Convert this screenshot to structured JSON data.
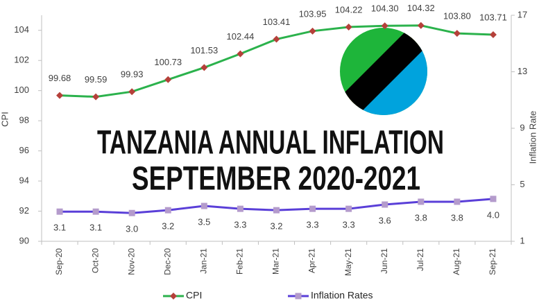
{
  "chart_data": {
    "type": "line",
    "title": "TANZANIA ANNUAL INFLATION",
    "subtitle": "SEPTEMBER 2020-2021",
    "y_label": "CPI",
    "y2_label": "Inflation Rate",
    "categories": [
      "Sep-20",
      "Oct-20",
      "Nov-20",
      "Dec-20",
      "Jan-21",
      "Feb-21",
      "Mar-21",
      "Apr-21",
      "May-21",
      "Jun-21",
      "Jul-21",
      "Aug-21",
      "Sep-21"
    ],
    "series": [
      {
        "name": "CPI",
        "color": "#2bb24c",
        "marker_color": "#b5403a",
        "marker": "diamond",
        "values": [
          99.68,
          99.59,
          99.93,
          100.73,
          101.53,
          102.44,
          103.41,
          103.95,
          104.22,
          104.3,
          104.32,
          103.8,
          103.71
        ],
        "value_labels": [
          "99.68",
          "99.59",
          "99.93",
          "100.73",
          "101.53",
          "102.44",
          "103.41",
          "103.95",
          "104.22",
          "104.30",
          "104.32",
          "103.80",
          "103.71"
        ]
      },
      {
        "name": "Inflation Rates",
        "color": "#5a3fd8",
        "marker_color": "#b49bcc",
        "marker": "square",
        "axis": "y2",
        "values": [
          3.1,
          3.1,
          3.0,
          3.2,
          3.5,
          3.3,
          3.2,
          3.3,
          3.3,
          3.6,
          3.8,
          3.8,
          4.0
        ],
        "value_labels": [
          "3.1",
          "3.1",
          "3.0",
          "3.2",
          "3.5",
          "3.3",
          "3.2",
          "3.3",
          "3.3",
          "3.6",
          "3.8",
          "3.8",
          "4.0"
        ]
      }
    ],
    "ylim": [
      90,
      105
    ],
    "yticks": [
      90,
      92,
      94,
      96,
      98,
      100,
      102,
      104
    ],
    "y2lim": [
      1,
      17
    ],
    "y2ticks": [
      1,
      5,
      9,
      13,
      17
    ],
    "grid": false
  }
}
